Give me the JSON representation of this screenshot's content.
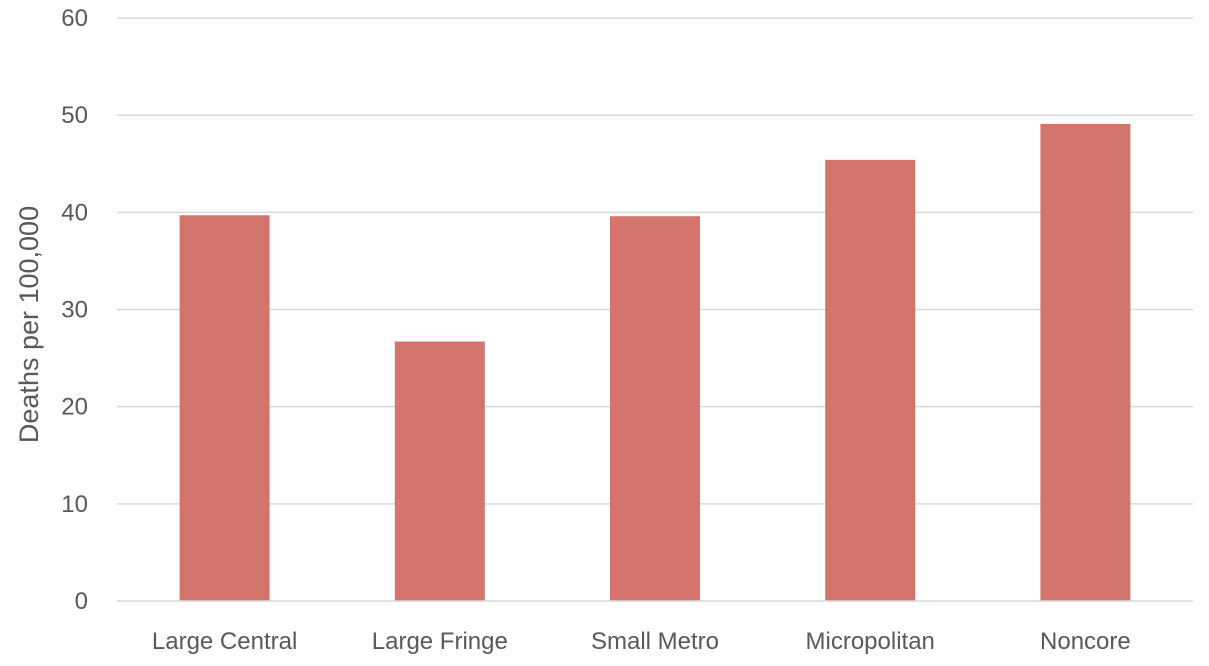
{
  "chart_data": {
    "type": "bar",
    "title": "",
    "xlabel": "",
    "ylabel": "Deaths per 100,000",
    "categories": [
      "Large Central",
      "Large Fringe",
      "Small Metro",
      "Micropolitan",
      "Noncore"
    ],
    "values": [
      39.7,
      26.7,
      39.6,
      45.4,
      49.1
    ],
    "ylim": [
      0,
      60
    ],
    "yticks": [
      "0",
      "10",
      "20",
      "30",
      "40",
      "50",
      "60"
    ],
    "grid": true,
    "legend": "none",
    "bar_color": "#d4756d",
    "grid_color": "#d9d9d9",
    "text_color": "#595959"
  }
}
